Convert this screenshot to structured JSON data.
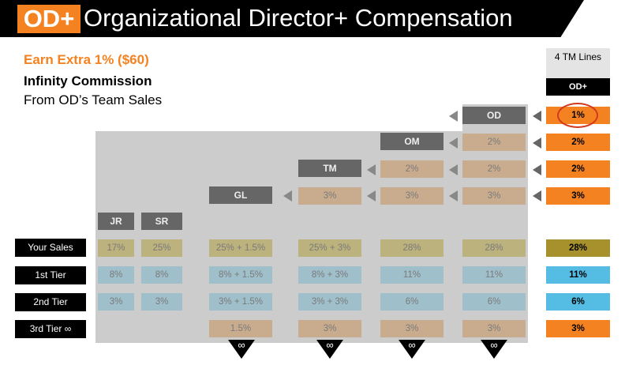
{
  "header": {
    "logo": "OD+",
    "title": "Organizational Director+ Compensation"
  },
  "subtitle": {
    "line1": "Earn Extra 1% ($60)",
    "line2": "Infinity Commission",
    "line3": "From OD’s Team Sales"
  },
  "ranks": {
    "jr": "JR",
    "sr": "SR",
    "gl": "GL",
    "tm": "TM",
    "om": "OM",
    "od": "OD"
  },
  "override_cells": {
    "od_om": "2%",
    "od_tm": "2%",
    "om_tm": "2%",
    "od_gl": "3%",
    "om_gl": "3%",
    "tm_gl": "3%"
  },
  "rows": [
    {
      "label": "Your Sales",
      "values": [
        "17%",
        "25%",
        "25% + 1.5%",
        "25% + 3%",
        "28%",
        "28%"
      ]
    },
    {
      "label": "1st Tier",
      "values": [
        "8%",
        "8%",
        "8% + 1.5%",
        "8% + 3%",
        "11%",
        "11%"
      ]
    },
    {
      "label": "2nd Tier",
      "values": [
        "3%",
        "3%",
        "3% + 1.5%",
        "3% + 3%",
        "6%",
        "6%"
      ]
    },
    {
      "label": "3rd Tier ∞",
      "values": [
        "",
        "",
        "1.5%",
        "3%",
        "3%",
        "3%"
      ]
    }
  ],
  "right_column": {
    "header_lines": "4 TM Lines",
    "header_rank": "OD+",
    "lines": [
      "1%",
      "2%",
      "2%",
      "3%"
    ],
    "rows": [
      "28%",
      "11%",
      "6%",
      "3%"
    ]
  },
  "infinity_symbol": "∞",
  "colors": {
    "accent": "#f58220",
    "highlight_circle": "#d23a1e"
  }
}
